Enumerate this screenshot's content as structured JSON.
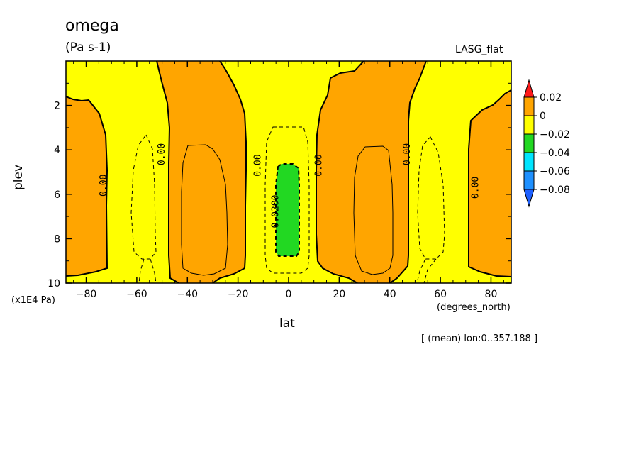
{
  "labels": {
    "title": "omega",
    "units": "(Pa s-1)",
    "experiment": "LASG_flat",
    "ylabel": "plev",
    "yunits": "(x1E4 Pa)",
    "xlabel": "lat",
    "xunits": "(degrees_north)",
    "note": "[ (mean) lon:0..357.188 ]"
  },
  "chart_data": {
    "type": "contour",
    "title": "omega",
    "subtitle": "(Pa s-1)",
    "xlabel": "lat",
    "ylabel": "plev",
    "xlim": [
      -88,
      88
    ],
    "ylim": [
      10,
      0
    ],
    "xticks": [
      "-80",
      "-60",
      "-40",
      "-20",
      "0",
      "20",
      "40",
      "60",
      "80"
    ],
    "yticks": [
      "2",
      "4",
      "6",
      "8",
      "10"
    ],
    "colors": {
      "pos_0_002": "#FFA500",
      "neg_002_0": "#FFFF00",
      "neg_004_002": "#22D822",
      "neg_006_004": "#00E5FF",
      "neg_008_006": "#1E90FF",
      "below": "#1E60FF",
      "above": "#FF1A1A"
    },
    "colorbar": {
      "labels": [
        "0.02",
        "0",
        "−0.02",
        "−0.04",
        "−0.06",
        "−0.08"
      ]
    },
    "contour_labels": [
      {
        "text": "0.00",
        "lat": -73,
        "plev": 5.6
      },
      {
        "text": "0.00",
        "lat": -50,
        "plev": 4.2
      },
      {
        "text": "0.00",
        "lat": -12,
        "plev": 4.7
      },
      {
        "text": "0.00",
        "lat": 12,
        "plev": 4.7
      },
      {
        "text": "0.00",
        "lat": 47,
        "plev": 4.2
      },
      {
        "text": "0.00",
        "lat": 74,
        "plev": 5.7
      },
      {
        "text": "-0.0200",
        "lat": -5,
        "plev": 6.9
      }
    ]
  }
}
